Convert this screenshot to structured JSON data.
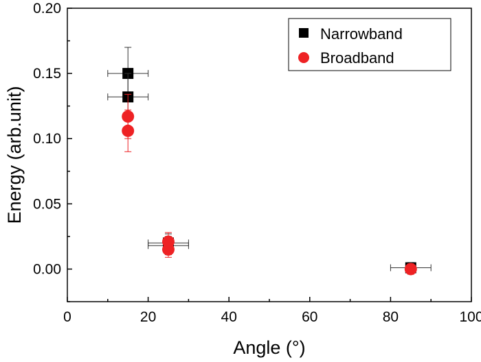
{
  "chart_data": {
    "type": "scatter",
    "xlabel": "Angle (°)",
    "ylabel": "Energy (arb.unit)",
    "xlim": [
      0,
      100
    ],
    "ylim": [
      -0.025,
      0.2
    ],
    "xticks": [
      "0",
      "20",
      "40",
      "60",
      "80",
      "100"
    ],
    "yticks": [
      "0.00",
      "0.05",
      "0.10",
      "0.15",
      "0.20"
    ],
    "grid": false,
    "legend_position": "top-right",
    "series": [
      {
        "name": "Narrowband",
        "marker": "square",
        "color": "#000000",
        "points": [
          {
            "x": 15,
            "y": 0.15,
            "xerr": 5,
            "yerr": 0.02
          },
          {
            "x": 15,
            "y": 0.132,
            "xerr": 5,
            "yerr": 0.018
          },
          {
            "x": 25,
            "y": 0.02,
            "xerr": 5,
            "yerr": 0.007
          },
          {
            "x": 25,
            "y": 0.018,
            "xerr": 5,
            "yerr": 0.007
          },
          {
            "x": 85,
            "y": 0.001,
            "xerr": 5,
            "yerr": 0.004
          }
        ]
      },
      {
        "name": "Broadband",
        "marker": "circle",
        "color": "#ee2224",
        "points": [
          {
            "x": 15,
            "y": 0.117,
            "xerr": 0,
            "yerr": 0.017
          },
          {
            "x": 15,
            "y": 0.106,
            "xerr": 0,
            "yerr": 0.016
          },
          {
            "x": 25,
            "y": 0.021,
            "xerr": 0,
            "yerr": 0.007
          },
          {
            "x": 25,
            "y": 0.015,
            "xerr": 0,
            "yerr": 0.006
          },
          {
            "x": 85,
            "y": 0.0,
            "xerr": 0,
            "yerr": 0.004
          }
        ]
      }
    ]
  }
}
